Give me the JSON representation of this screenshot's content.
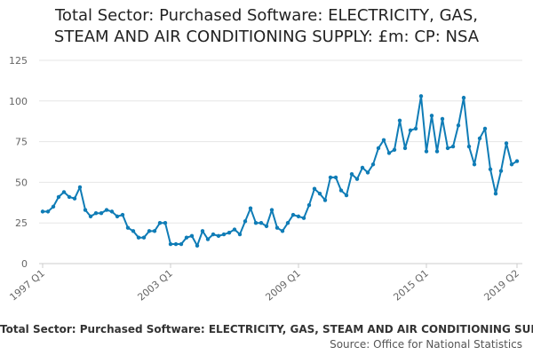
{
  "chart_data": {
    "type": "line",
    "title_lines": [
      "Total Sector: Purchased Software: ELECTRICITY, GAS,",
      "STEAM AND AIR CONDITIONING SUPPLY: £m: CP: NSA"
    ],
    "x_tick_labels": [
      "1997 Q1",
      "2003 Q1",
      "2009 Q1",
      "2015 Q1",
      "2019 Q2"
    ],
    "x_tick_index": [
      0,
      24,
      48,
      72,
      89
    ],
    "y_ticks": [
      0,
      25,
      50,
      75,
      100,
      125
    ],
    "ylim": [
      0,
      125
    ],
    "grid": true,
    "legend": "none",
    "color": "#0f7cb6",
    "x_start": "1997 Q1",
    "x_end": "2019 Q2",
    "values": [
      32,
      32,
      35,
      41,
      44,
      41,
      40,
      47,
      33,
      29,
      31,
      31,
      33,
      32,
      29,
      30,
      22,
      20,
      16,
      16,
      20,
      20,
      25,
      25,
      12,
      12,
      12,
      16,
      17,
      11,
      20,
      15,
      18,
      17,
      18,
      19,
      21,
      18,
      26,
      34,
      25,
      25,
      23,
      33,
      22,
      20,
      25,
      30,
      29,
      28,
      36,
      46,
      43,
      39,
      53,
      53,
      45,
      42,
      55,
      52,
      59,
      56,
      61,
      71,
      76,
      68,
      70,
      88,
      71,
      82,
      83,
      103,
      69,
      91,
      69,
      89,
      71,
      72,
      85,
      102,
      72,
      61,
      77,
      83,
      58,
      43,
      57,
      74,
      61,
      63
    ]
  },
  "footer": {
    "caption": "Total Sector: Purchased Software: ELECTRICITY, GAS, STEAM AND AIR CONDITIONING SUPPLY: £m: CP: NSA",
    "source": "Source: Office for National Statistics"
  }
}
